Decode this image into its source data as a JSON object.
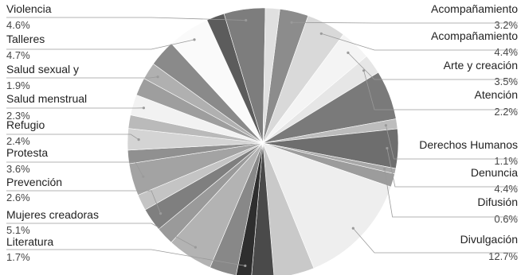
{
  "chart_data": {
    "type": "pie",
    "title": "",
    "slices": [
      {
        "name": "Acompañamiento",
        "percent": "3.2%",
        "value": 3.2,
        "color": "#8c8c8c"
      },
      {
        "name": "Acompañamiento",
        "percent": "4.4%",
        "value": 4.4,
        "color": "#d9d9d9"
      },
      {
        "name": "Arte y creación",
        "percent": "3.5%",
        "value": 3.5,
        "color": "#f4f4f4"
      },
      {
        "name": "Atención",
        "percent": "2.2%",
        "value": 2.2,
        "color": "#e6e6e6"
      },
      {
        "name": "",
        "percent": "",
        "value": 5.5,
        "color": "#7a7a7a"
      },
      {
        "name": "Derechos Humanos",
        "percent": "1.1%",
        "value": 1.1,
        "color": "#bdbdbd"
      },
      {
        "name": "Denuncia",
        "percent": "4.4%",
        "value": 4.4,
        "color": "#6e6e6e"
      },
      {
        "name": "Difusión",
        "percent": "0.6%",
        "value": 0.6,
        "color": "#a8a8a8"
      },
      {
        "name": "",
        "percent": "",
        "value": 1.5,
        "color": "#9c9c9c"
      },
      {
        "name": "Divulgación",
        "percent": "12.7%",
        "value": 12.7,
        "color": "#eeeeee"
      },
      {
        "name": "",
        "percent": "",
        "value": 4.5,
        "color": "#c9c9c9"
      },
      {
        "name": "",
        "percent": "",
        "value": 2.5,
        "color": "#4a4a4a"
      },
      {
        "name": "Literatura",
        "percent": "1.7%",
        "value": 1.7,
        "color": "#2e2e2e"
      },
      {
        "name": "",
        "percent": "",
        "value": 3.0,
        "color": "#888888"
      },
      {
        "name": "Mujeres creadoras",
        "percent": "5.1%",
        "value": 5.1,
        "color": "#b3b3b3"
      },
      {
        "name": "",
        "percent": "",
        "value": 2.0,
        "color": "#9a9a9a"
      },
      {
        "name": "Prevención",
        "percent": "2.6%",
        "value": 2.6,
        "color": "#7f7f7f"
      },
      {
        "name": "",
        "percent": "",
        "value": 1.8,
        "color": "#c4c4c4"
      },
      {
        "name": "Protesta",
        "percent": "3.6%",
        "value": 3.6,
        "color": "#a3a3a3"
      },
      {
        "name": "",
        "percent": "",
        "value": 1.5,
        "color": "#909090"
      },
      {
        "name": "Refugio",
        "percent": "2.4%",
        "value": 2.4,
        "color": "#d4d4d4"
      },
      {
        "name": "",
        "percent": "",
        "value": 1.5,
        "color": "#bababa"
      },
      {
        "name": "Salud menstrual",
        "percent": "2.3%",
        "value": 2.3,
        "color": "#f2f2f2"
      },
      {
        "name": "",
        "percent": "",
        "value": 2.0,
        "color": "#9e9e9e"
      },
      {
        "name": "Salud sexual y",
        "percent": "1.9%",
        "value": 1.9,
        "color": "#b0b0b0"
      },
      {
        "name": "",
        "percent": "",
        "value": 3.0,
        "color": "#8a8a8a"
      },
      {
        "name": "Talleres",
        "percent": "4.7%",
        "value": 4.7,
        "color": "#fafafa"
      },
      {
        "name": "",
        "percent": "",
        "value": 2.0,
        "color": "#5c5c5c"
      },
      {
        "name": "Violencia",
        "percent": "4.6%",
        "value": 4.6,
        "color": "#7d7d7d"
      },
      {
        "name": "",
        "percent": "",
        "value": 1.6,
        "color": "#e0e0e0"
      }
    ],
    "labels_left": [
      "Violencia",
      "Talleres",
      "Salud sexual y",
      "Salud menstrual",
      "Refugio",
      "Protesta",
      "Prevención",
      "Mujeres creadoras",
      "Literatura"
    ],
    "labels_right": [
      "Acompañamiento",
      "Acompañamiento",
      "Arte y creación",
      "Atención",
      "Derechos Humanos",
      "Denuncia",
      "Difusión",
      "Divulgación"
    ]
  }
}
